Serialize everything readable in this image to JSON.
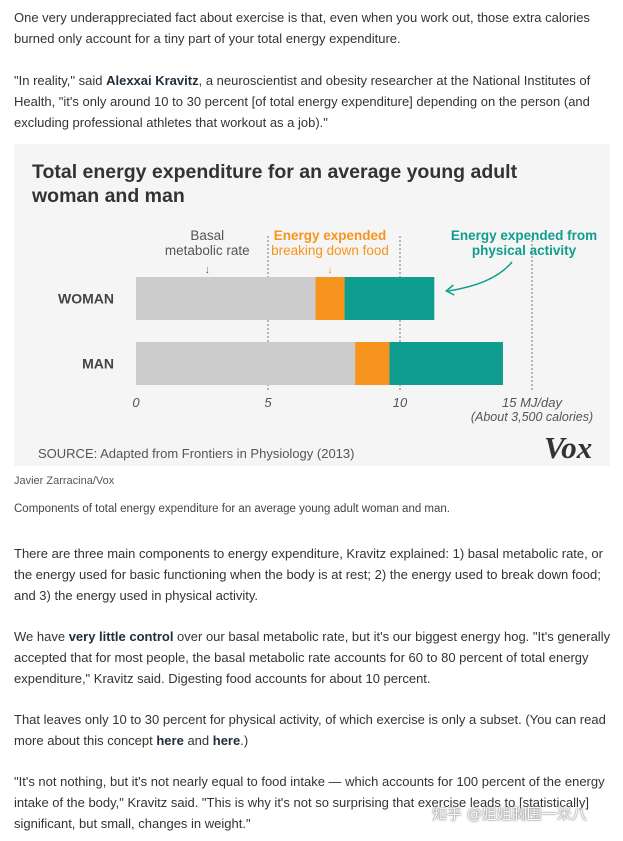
{
  "paragraphs": {
    "p1": "One very underappreciated fact about exercise is that, even when you work out, those extra calories burned only account for a tiny part of your total energy expenditure.",
    "p2_pre": "\"In reality,\" said ",
    "p2_bold": "Alexxai Kravitz",
    "p2_post": ", a neuroscientist and obesity researcher at the National Institutes of Health, \"it's only around 10 to 30 percent [of total energy expenditure] depending on the person (and excluding professional athletes that workout as a job).\"",
    "p3": "There are three main components to energy expenditure, Kravitz explained: 1) basal metabolic rate, or the energy used for basic functioning when the body is at rest; 2) the energy used to break down food; and 3) the energy used in physical activity.",
    "p4_pre": "We have ",
    "p4_link": "very little control",
    "p4_post": " over our basal metabolic rate, but it's our biggest energy hog. \"It's generally accepted that for most people, the basal metabolic rate accounts for 60 to 80 percent of total energy expenditure,\" Kravitz said. Digesting food accounts for about 10 percent.",
    "p5_pre": "That leaves only 10 to 30 percent for physical activity, of which exercise is only a subset. (You can read more about this concept ",
    "p5_link1": "here",
    "p5_mid": " and ",
    "p5_link2": "here",
    "p5_post": ".)",
    "p6": "\"It's not nothing, but it's not nearly equal to food intake — which accounts for 100 percent of the energy intake of the body,\" Kravitz said. \"This is why it's not so surprising that exercise leads to [statistically] significant, but small, changes in weight.\""
  },
  "figure": {
    "credit": "Javier Zarracina/Vox",
    "caption": "Components of total energy expenditure for an average young adult woman and man.",
    "logo": "Vox"
  },
  "watermark": "知乎 @姐姐胸围一米八",
  "chart_data": {
    "type": "bar",
    "stacked": true,
    "orientation": "horizontal",
    "title_line1": "Total energy expenditure for an average young adult",
    "title_line2": "woman and man",
    "categories": [
      "WOMAN",
      "MAN"
    ],
    "series": [
      {
        "name_line1": "Basal",
        "name_line2": "metabolic rate",
        "color": "#cccccc",
        "values": [
          6.8,
          8.3
        ]
      },
      {
        "name_line1": "Energy expended",
        "name_line2": "breaking down food",
        "color": "#f7941d",
        "values": [
          1.1,
          1.3
        ]
      },
      {
        "name_line1": "Energy expended from",
        "name_line2": "physical activity",
        "color": "#0f9d8f",
        "values": [
          3.4,
          4.3
        ]
      }
    ],
    "xticks": [
      0,
      5,
      10
    ],
    "xlim": [
      0,
      15
    ],
    "xunit_line1": "15 MJ/day",
    "xunit_line2": "(About 3,500 calories)",
    "source": "SOURCE: Adapted from Frontiers in Physiology (2013)",
    "grid": "vertical dashed at ticks"
  }
}
